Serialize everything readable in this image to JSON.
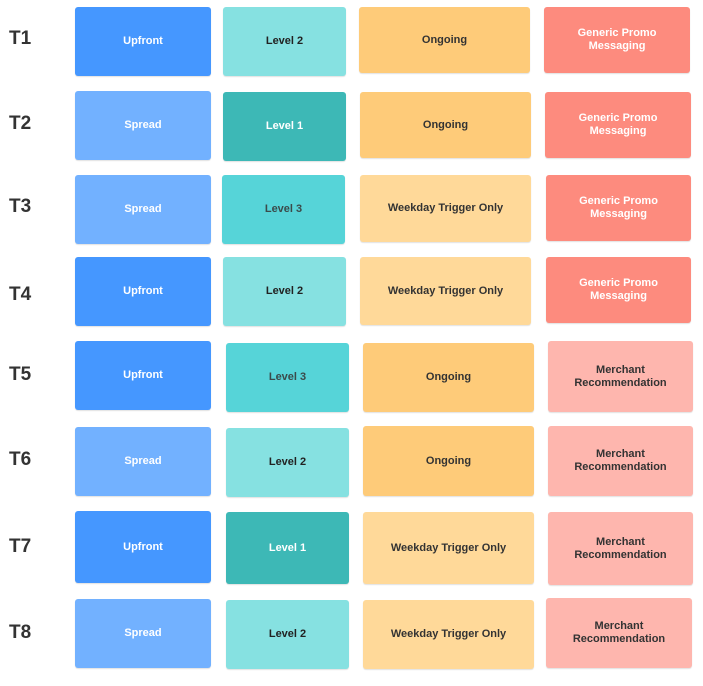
{
  "colors": {
    "upfront": "#4597ff",
    "spread": "#72b1ff",
    "level_light": "#86e1e1",
    "level_dark": "#3db8b6",
    "level_mid": "#56d4d8",
    "ongoing": "#fecb79",
    "weekday_trigger": "#ffd999",
    "generic_promo": "#fd8b7e",
    "merchant_recommendation": "#feb6ae"
  },
  "rows": [
    {
      "label": "T1",
      "timing": "Upfront",
      "level": "Level 2",
      "trigger": "Ongoing",
      "messaging": "Generic Promo\nMessaging"
    },
    {
      "label": "T2",
      "timing": "Spread",
      "level": "Level 1",
      "trigger": "Ongoing",
      "messaging": "Generic Promo\nMessaging"
    },
    {
      "label": "T3",
      "timing": "Spread",
      "level": "Level 3",
      "trigger": "Weekday Trigger Only",
      "messaging": "Generic Promo\nMessaging"
    },
    {
      "label": "T4",
      "timing": "Upfront",
      "level": "Level 2",
      "trigger": "Weekday Trigger Only",
      "messaging": "Generic Promo\nMessaging"
    },
    {
      "label": "T5",
      "timing": "Upfront",
      "level": "Level 3",
      "trigger": "Ongoing",
      "messaging": "Merchant\nRecommendation"
    },
    {
      "label": "T6",
      "timing": "Spread",
      "level": "Level 2",
      "trigger": "Ongoing",
      "messaging": "Merchant\nRecommendation"
    },
    {
      "label": "T7",
      "timing": "Upfront",
      "level": "Level 1",
      "trigger": "Weekday Trigger Only",
      "messaging": "Merchant\nRecommendation"
    },
    {
      "label": "T8",
      "timing": "Spread",
      "level": "Level 2",
      "trigger": "Weekday Trigger Only",
      "messaging": "Merchant\nRecommendation"
    }
  ]
}
